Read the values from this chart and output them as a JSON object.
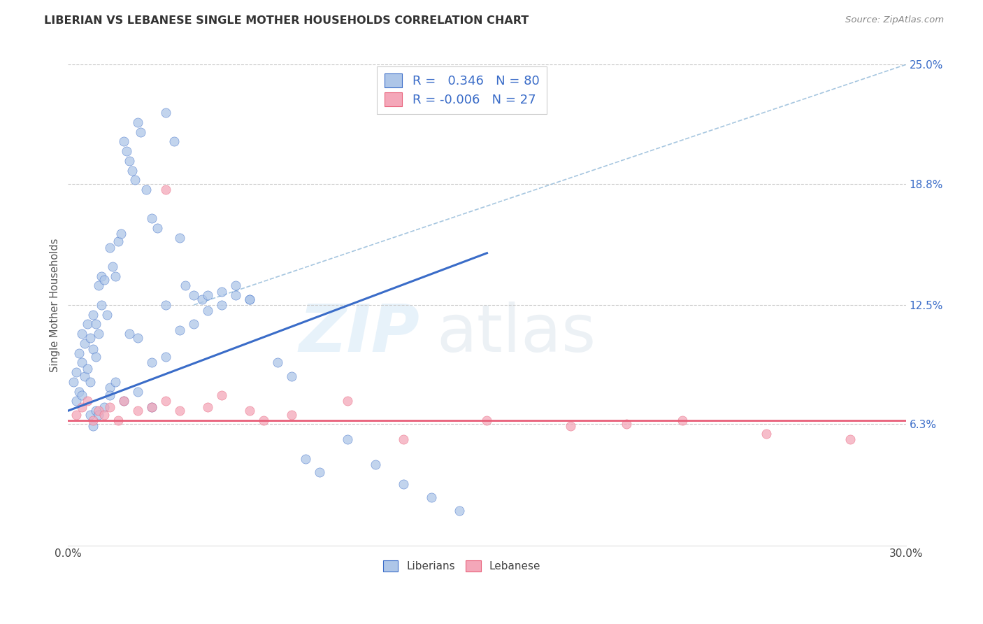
{
  "title": "LIBERIAN VS LEBANESE SINGLE MOTHER HOUSEHOLDS CORRELATION CHART",
  "source": "Source: ZipAtlas.com",
  "ylabel": "Single Mother Households",
  "xlim": [
    0.0,
    30.0
  ],
  "ylim": [
    0.0,
    25.0
  ],
  "yticks": [
    6.3,
    12.5,
    18.8,
    25.0
  ],
  "ytick_labels": [
    "6.3%",
    "12.5%",
    "18.8%",
    "25.0%"
  ],
  "liberian_color": "#aec6e8",
  "lebanese_color": "#f4a7b9",
  "liberian_line_color": "#3A6CC8",
  "lebanese_line_color": "#E8607A",
  "dashed_line_color": "#90b8d8",
  "legend_label1": "Liberians",
  "legend_label2": "Lebanese",
  "liberian_R": 0.346,
  "liberian_N": 80,
  "lebanese_R": -0.006,
  "lebanese_N": 27,
  "lib_line_x0": 0.0,
  "lib_line_y0": 7.0,
  "lib_line_x1": 15.0,
  "lib_line_y1": 15.2,
  "leb_line_y": 6.5,
  "dash_x0": 4.5,
  "dash_y0": 12.5,
  "dash_x1": 30.0,
  "dash_y1": 25.0,
  "liberian_x": [
    0.2,
    0.3,
    0.3,
    0.4,
    0.4,
    0.5,
    0.5,
    0.5,
    0.6,
    0.6,
    0.7,
    0.7,
    0.8,
    0.8,
    0.9,
    0.9,
    1.0,
    1.0,
    1.1,
    1.1,
    1.2,
    1.2,
    1.3,
    1.4,
    1.5,
    1.6,
    1.7,
    1.8,
    1.9,
    2.0,
    2.1,
    2.2,
    2.3,
    2.4,
    2.5,
    2.6,
    2.8,
    3.0,
    3.2,
    3.5,
    3.8,
    4.0,
    4.2,
    4.5,
    4.8,
    5.0,
    5.5,
    6.0,
    6.5,
    7.5,
    8.0,
    8.5,
    9.0,
    10.0,
    11.0,
    12.0,
    13.0,
    14.0,
    3.0,
    3.5,
    4.0,
    5.0,
    6.0,
    2.5,
    3.0,
    1.5,
    2.0,
    0.8,
    0.9,
    1.0,
    1.1,
    1.3,
    1.5,
    1.7,
    2.2,
    2.5,
    3.5,
    4.5,
    5.5,
    6.5
  ],
  "liberian_y": [
    8.5,
    9.0,
    7.5,
    8.0,
    10.0,
    9.5,
    7.8,
    11.0,
    10.5,
    8.8,
    9.2,
    11.5,
    10.8,
    8.5,
    12.0,
    10.2,
    11.5,
    9.8,
    13.5,
    11.0,
    14.0,
    12.5,
    13.8,
    12.0,
    15.5,
    14.5,
    14.0,
    15.8,
    16.2,
    21.0,
    20.5,
    20.0,
    19.5,
    19.0,
    22.0,
    21.5,
    18.5,
    17.0,
    16.5,
    22.5,
    21.0,
    16.0,
    13.5,
    13.0,
    12.8,
    13.0,
    12.5,
    13.5,
    12.8,
    9.5,
    8.8,
    4.5,
    3.8,
    5.5,
    4.2,
    3.2,
    2.5,
    1.8,
    7.2,
    9.8,
    11.2,
    12.2,
    13.0,
    8.0,
    9.5,
    8.2,
    7.5,
    6.8,
    6.2,
    7.0,
    6.8,
    7.2,
    7.8,
    8.5,
    11.0,
    10.8,
    12.5,
    11.5,
    13.2,
    12.8
  ],
  "lebanese_x": [
    0.3,
    0.5,
    0.7,
    0.9,
    1.1,
    1.3,
    1.5,
    1.8,
    2.0,
    2.5,
    3.0,
    3.5,
    4.0,
    5.0,
    6.5,
    8.0,
    10.0,
    15.0,
    20.0,
    22.0,
    25.0,
    28.0,
    3.5,
    5.5,
    7.0,
    12.0,
    18.0
  ],
  "lebanese_y": [
    6.8,
    7.2,
    7.5,
    6.5,
    7.0,
    6.8,
    7.2,
    6.5,
    7.5,
    7.0,
    7.2,
    7.5,
    7.0,
    7.2,
    7.0,
    6.8,
    7.5,
    6.5,
    6.3,
    6.5,
    5.8,
    5.5,
    18.5,
    7.8,
    6.5,
    5.5,
    6.2
  ]
}
